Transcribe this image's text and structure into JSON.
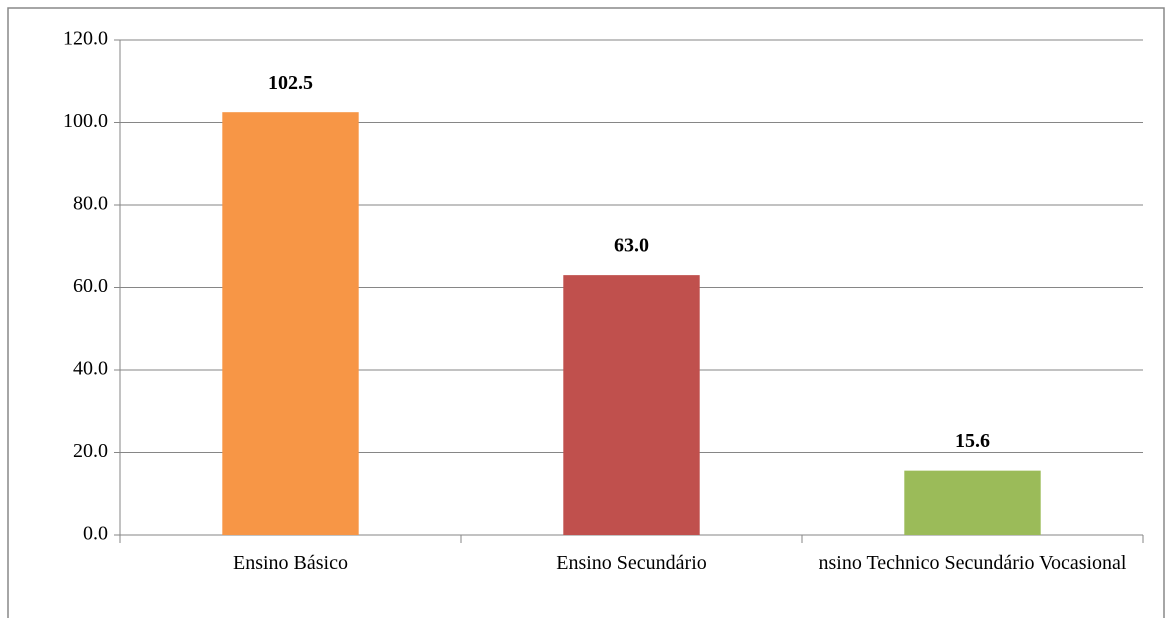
{
  "chart_data": {
    "type": "bar",
    "categories": [
      "Ensino Básico",
      "Ensino Secundário",
      "nsino Technico Secundário Vocasional"
    ],
    "values": [
      102.5,
      63.0,
      15.6
    ],
    "value_labels": [
      "102.5",
      "63.0",
      "15.6"
    ],
    "colors": [
      "#f79646",
      "#c0504d",
      "#9bbb59"
    ],
    "ylim": [
      0,
      120
    ],
    "yticks": [
      {
        "value": 0,
        "label": "0.0"
      },
      {
        "value": 20,
        "label": "20.0"
      },
      {
        "value": 40,
        "label": "40.0"
      },
      {
        "value": 60,
        "label": "60.0"
      },
      {
        "value": 80,
        "label": "80.0"
      },
      {
        "value": 100,
        "label": "100.0"
      },
      {
        "value": 120,
        "label": "120.0"
      }
    ],
    "grid": true
  }
}
